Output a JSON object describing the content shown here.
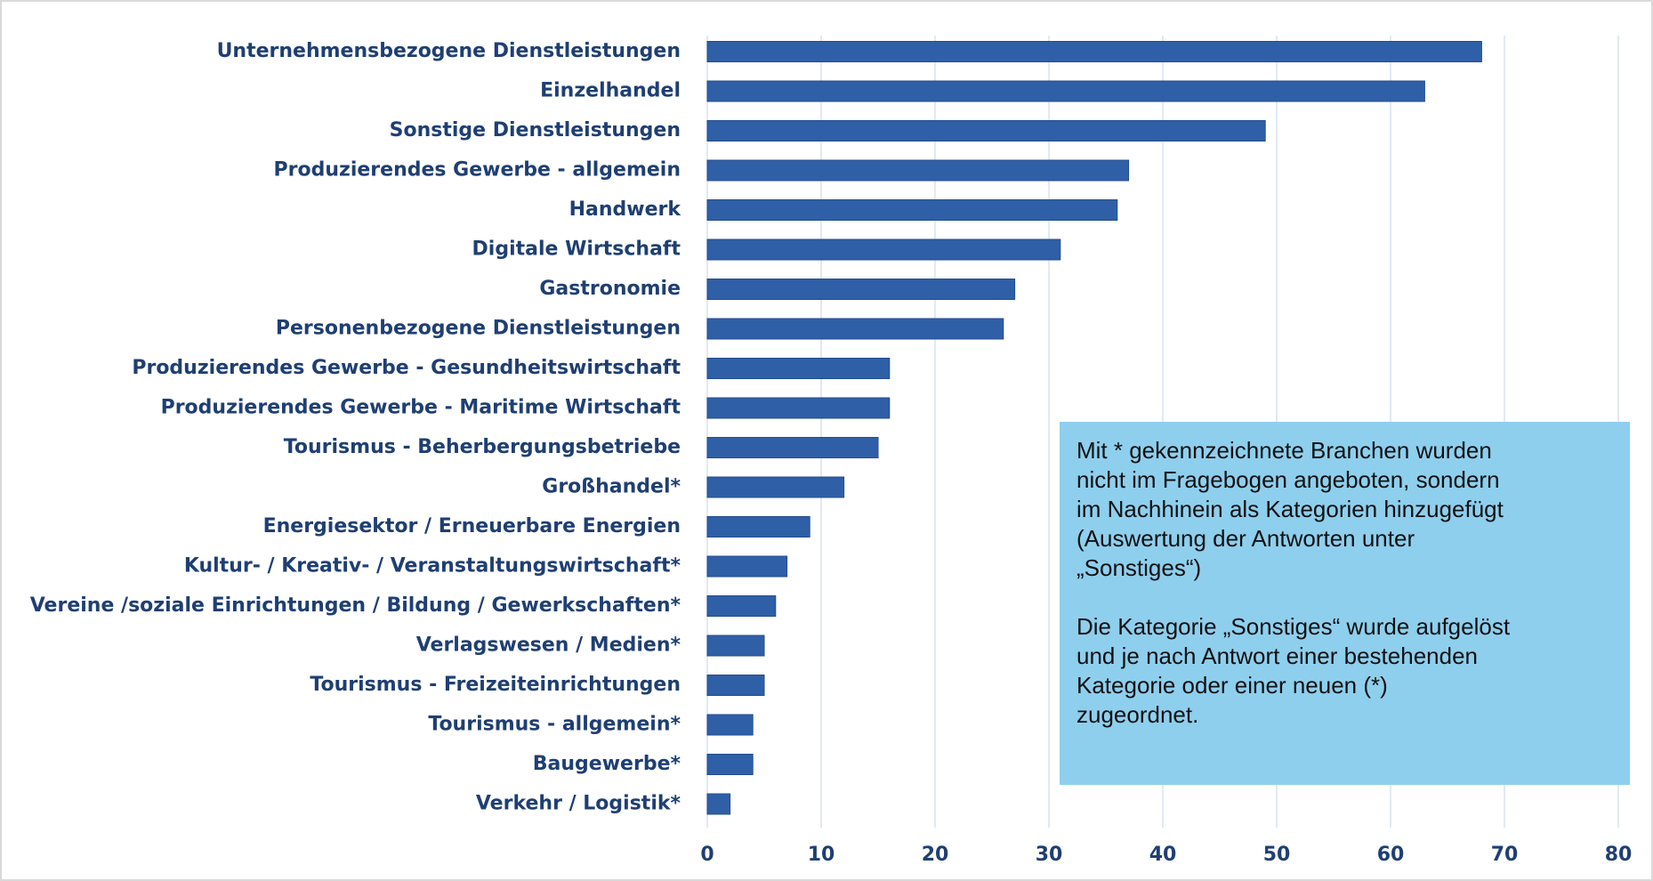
{
  "chart_data": {
    "type": "bar",
    "orientation": "horizontal",
    "categories": [
      "Unternehmensbezogene Dienstleistungen",
      "Einzelhandel",
      "Sonstige Dienstleistungen",
      "Produzierendes Gewerbe - allgemein",
      "Handwerk",
      "Digitale Wirtschaft",
      "Gastronomie",
      "Personenbezogene Dienstleistungen",
      "Produzierendes Gewerbe - Gesundheitswirtschaft",
      "Produzierendes Gewerbe - Maritime Wirtschaft",
      "Tourismus - Beherbergungsbetriebe",
      "Großhandel*",
      "Energiesektor / Erneuerbare Energien",
      "Kultur- / Kreativ- / Veranstaltungswirtschaft*",
      "Vereine /soziale Einrichtungen / Bildung / Gewerkschaften*",
      "Verlagswesen / Medien*",
      "Tourismus - Freizeiteinrichtungen",
      "Tourismus - allgemein*",
      "Baugewerbe*",
      "Verkehr / Logistik*"
    ],
    "values": [
      68,
      63,
      49,
      37,
      36,
      31,
      27,
      26,
      16,
      16,
      15,
      12,
      9,
      7,
      6,
      5,
      5,
      4,
      4,
      2
    ],
    "color": "#2f5fa7",
    "xlim": [
      0,
      80
    ],
    "xticks": [
      0,
      10,
      20,
      30,
      40,
      50,
      60,
      70,
      80
    ],
    "grid": true,
    "annotation": [
      [
        "Mit * gekennzeichnete Branchen wurden",
        "nicht im Fragebogen angeboten, sondern",
        "im Nachhinein als Kategorien hinzugefügt",
        "(Auswertung der Antworten unter",
        "„Sonstiges“)"
      ],
      [
        "Die Kategorie „Sonstiges“ wurde aufgelöst",
        "und je nach Antwort einer bestehenden",
        "Kategorie oder einer neuen (*)",
        "zugeordnet."
      ]
    ]
  }
}
